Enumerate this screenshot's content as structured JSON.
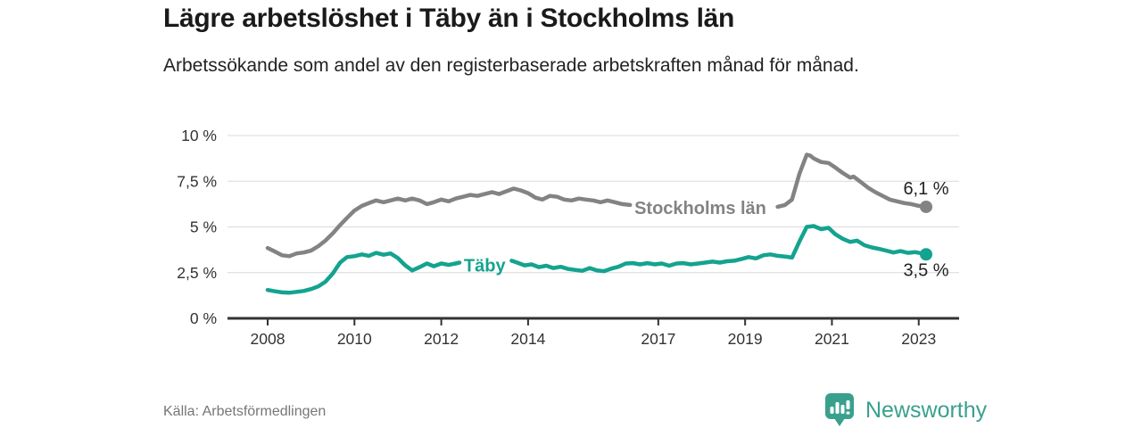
{
  "header": {
    "title": "Lägre arbetslöshet i Täby än i Stockholms län",
    "subtitle": "Arbetssökande som andel av den registerbaserade arbetskraften månad för månad."
  },
  "footer": {
    "source": "Källa: Arbetsförmedlingen",
    "brand": "Newsworthy"
  },
  "colors": {
    "stockholm_line": "#838383",
    "taby_line": "#14a38f",
    "grid": "#d9d9d9",
    "axis": "#333333",
    "tick_text": "#333333",
    "end_label_text": "#222222",
    "brand": "#3aa08e"
  },
  "chart_data": {
    "type": "line",
    "title": "Lägre arbetslöshet i Täby än i Stockholms län",
    "subtitle": "Arbetssökande som andel av den registerbaserade arbetskraften månad för månad.",
    "xlabel": "",
    "ylabel": "",
    "ylim": [
      0,
      10
    ],
    "xlim": [
      2007.1,
      2023.9
    ],
    "grid": "horizontal-only",
    "legend_position": "inline-labels",
    "x_ticks": [
      2008,
      2010,
      2012,
      2014,
      2017,
      2019,
      2021,
      2023
    ],
    "y_ticks": [
      {
        "v": 0,
        "label": "0 %"
      },
      {
        "v": 2.5,
        "label": "2,5 %"
      },
      {
        "v": 5,
        "label": "5 %"
      },
      {
        "v": 7.5,
        "label": "7,5 %"
      },
      {
        "v": 10,
        "label": "10 %"
      }
    ],
    "series": [
      {
        "name": "Stockholms län",
        "color": "#838383",
        "line_label": {
          "text": "Stockholms län",
          "x": 2016.45,
          "y": 6.05
        },
        "end_label": {
          "text": "6,1 %",
          "dy": -14
        },
        "end_value": 6.1,
        "segments": [
          [
            [
              2008.0,
              3.85
            ],
            [
              2008.17,
              3.65
            ],
            [
              2008.33,
              3.45
            ],
            [
              2008.5,
              3.4
            ],
            [
              2008.67,
              3.55
            ],
            [
              2008.83,
              3.6
            ],
            [
              2009.0,
              3.7
            ],
            [
              2009.17,
              3.95
            ],
            [
              2009.33,
              4.25
            ],
            [
              2009.5,
              4.65
            ],
            [
              2009.67,
              5.1
            ],
            [
              2009.83,
              5.5
            ],
            [
              2010.0,
              5.9
            ],
            [
              2010.17,
              6.15
            ],
            [
              2010.33,
              6.3
            ],
            [
              2010.5,
              6.45
            ],
            [
              2010.67,
              6.35
            ],
            [
              2010.83,
              6.45
            ],
            [
              2011.0,
              6.55
            ],
            [
              2011.17,
              6.45
            ],
            [
              2011.33,
              6.55
            ],
            [
              2011.5,
              6.45
            ],
            [
              2011.67,
              6.25
            ],
            [
              2011.83,
              6.35
            ],
            [
              2012.0,
              6.5
            ],
            [
              2012.17,
              6.4
            ],
            [
              2012.33,
              6.55
            ],
            [
              2012.5,
              6.65
            ],
            [
              2012.67,
              6.75
            ],
            [
              2012.83,
              6.7
            ],
            [
              2013.0,
              6.8
            ],
            [
              2013.17,
              6.9
            ],
            [
              2013.33,
              6.8
            ],
            [
              2013.5,
              6.95
            ],
            [
              2013.67,
              7.1
            ],
            [
              2013.83,
              7.0
            ],
            [
              2014.0,
              6.85
            ],
            [
              2014.17,
              6.6
            ],
            [
              2014.33,
              6.5
            ],
            [
              2014.5,
              6.7
            ],
            [
              2014.67,
              6.65
            ],
            [
              2014.83,
              6.5
            ],
            [
              2015.0,
              6.45
            ],
            [
              2015.17,
              6.55
            ],
            [
              2015.33,
              6.5
            ],
            [
              2015.5,
              6.45
            ],
            [
              2015.67,
              6.35
            ],
            [
              2015.83,
              6.45
            ],
            [
              2016.0,
              6.35
            ],
            [
              2016.17,
              6.25
            ],
            [
              2016.35,
              6.2
            ]
          ],
          [
            [
              2019.75,
              6.1
            ],
            [
              2019.92,
              6.2
            ],
            [
              2020.08,
              6.5
            ],
            [
              2020.25,
              7.9
            ],
            [
              2020.42,
              8.95
            ],
            [
              2020.5,
              8.9
            ],
            [
              2020.58,
              8.75
            ],
            [
              2020.75,
              8.55
            ],
            [
              2020.92,
              8.5
            ],
            [
              2021.08,
              8.25
            ],
            [
              2021.25,
              7.95
            ],
            [
              2021.42,
              7.7
            ],
            [
              2021.5,
              7.75
            ],
            [
              2021.67,
              7.45
            ],
            [
              2021.83,
              7.15
            ],
            [
              2022.0,
              6.9
            ],
            [
              2022.17,
              6.7
            ],
            [
              2022.33,
              6.5
            ],
            [
              2022.5,
              6.4
            ],
            [
              2022.67,
              6.3
            ],
            [
              2022.83,
              6.25
            ],
            [
              2023.0,
              6.15
            ],
            [
              2023.17,
              6.1
            ]
          ]
        ]
      },
      {
        "name": "Täby",
        "color": "#14a38f",
        "line_label": {
          "text": "Täby",
          "x": 2012.52,
          "y": 2.9
        },
        "end_label": {
          "text": "3,5 %",
          "dy": 24
        },
        "end_value": 3.5,
        "segments": [
          [
            [
              2008.0,
              1.55
            ],
            [
              2008.17,
              1.48
            ],
            [
              2008.33,
              1.42
            ],
            [
              2008.5,
              1.4
            ],
            [
              2008.67,
              1.45
            ],
            [
              2008.83,
              1.5
            ],
            [
              2009.0,
              1.6
            ],
            [
              2009.17,
              1.75
            ],
            [
              2009.33,
              2.0
            ],
            [
              2009.5,
              2.45
            ],
            [
              2009.67,
              3.05
            ],
            [
              2009.83,
              3.35
            ],
            [
              2010.0,
              3.4
            ],
            [
              2010.17,
              3.5
            ],
            [
              2010.33,
              3.42
            ],
            [
              2010.5,
              3.58
            ],
            [
              2010.67,
              3.48
            ],
            [
              2010.83,
              3.55
            ],
            [
              2011.0,
              3.3
            ],
            [
              2011.17,
              2.9
            ],
            [
              2011.33,
              2.62
            ],
            [
              2011.5,
              2.8
            ],
            [
              2011.67,
              3.0
            ],
            [
              2011.83,
              2.85
            ],
            [
              2012.0,
              3.0
            ],
            [
              2012.17,
              2.92
            ],
            [
              2012.33,
              3.0
            ],
            [
              2012.42,
              3.05
            ]
          ],
          [
            [
              2013.62,
              3.15
            ],
            [
              2013.75,
              3.05
            ],
            [
              2013.92,
              2.9
            ],
            [
              2014.08,
              2.95
            ],
            [
              2014.25,
              2.8
            ],
            [
              2014.42,
              2.88
            ],
            [
              2014.58,
              2.75
            ],
            [
              2014.75,
              2.82
            ],
            [
              2014.92,
              2.7
            ],
            [
              2015.08,
              2.65
            ],
            [
              2015.25,
              2.6
            ],
            [
              2015.42,
              2.75
            ],
            [
              2015.58,
              2.62
            ],
            [
              2015.75,
              2.58
            ],
            [
              2015.92,
              2.72
            ],
            [
              2016.08,
              2.82
            ],
            [
              2016.25,
              3.0
            ],
            [
              2016.42,
              3.02
            ],
            [
              2016.58,
              2.95
            ],
            [
              2016.75,
              3.02
            ],
            [
              2016.92,
              2.95
            ],
            [
              2017.08,
              3.0
            ],
            [
              2017.25,
              2.88
            ],
            [
              2017.42,
              3.0
            ],
            [
              2017.58,
              3.02
            ],
            [
              2017.75,
              2.95
            ],
            [
              2017.92,
              3.0
            ],
            [
              2018.08,
              3.05
            ],
            [
              2018.25,
              3.1
            ],
            [
              2018.42,
              3.05
            ],
            [
              2018.58,
              3.12
            ],
            [
              2018.75,
              3.15
            ],
            [
              2018.92,
              3.25
            ],
            [
              2019.08,
              3.35
            ],
            [
              2019.25,
              3.28
            ],
            [
              2019.42,
              3.45
            ],
            [
              2019.58,
              3.5
            ],
            [
              2019.75,
              3.42
            ],
            [
              2019.92,
              3.38
            ],
            [
              2020.08,
              3.32
            ],
            [
              2020.25,
              4.2
            ],
            [
              2020.42,
              5.0
            ],
            [
              2020.58,
              5.05
            ],
            [
              2020.75,
              4.88
            ],
            [
              2020.92,
              4.95
            ],
            [
              2021.08,
              4.6
            ],
            [
              2021.25,
              4.35
            ],
            [
              2021.42,
              4.18
            ],
            [
              2021.58,
              4.25
            ],
            [
              2021.75,
              4.0
            ],
            [
              2021.92,
              3.88
            ],
            [
              2022.08,
              3.8
            ],
            [
              2022.25,
              3.7
            ],
            [
              2022.42,
              3.6
            ],
            [
              2022.58,
              3.68
            ],
            [
              2022.75,
              3.58
            ],
            [
              2022.92,
              3.62
            ],
            [
              2023.08,
              3.55
            ],
            [
              2023.17,
              3.5
            ]
          ]
        ]
      }
    ]
  }
}
